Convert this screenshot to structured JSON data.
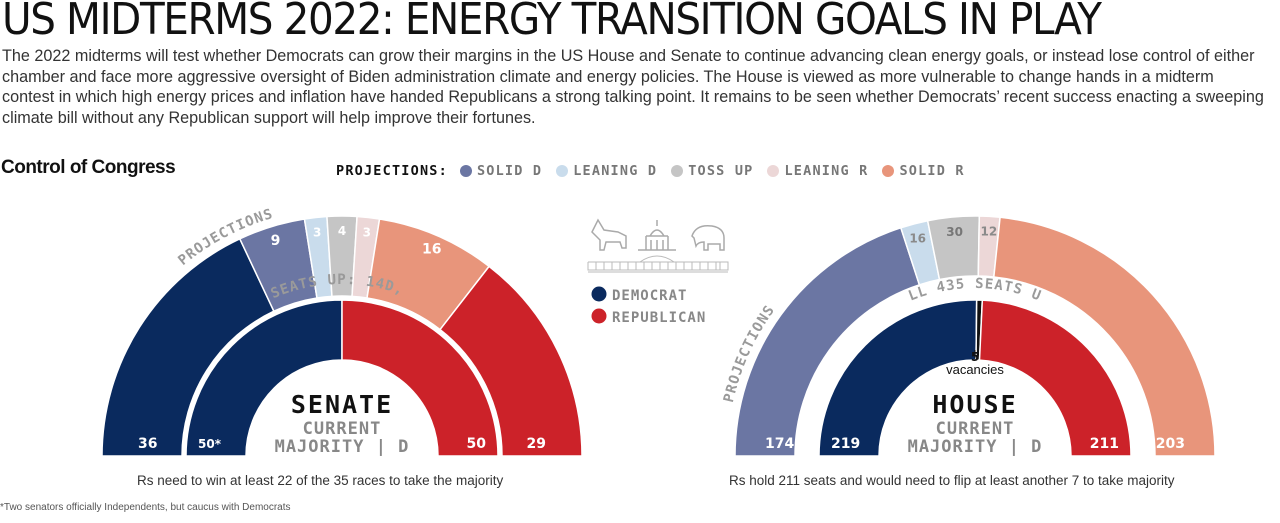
{
  "headline": "US MIDTERMS 2022: ENERGY TRANSITION GOALS IN PLAY",
  "deck": "The 2022 midterms will test whether Democrats can grow their margins in the US House and Senate to continue advancing clean energy goals, or instead lose control of either chamber and face more aggressive oversight of Biden administration climate and energy policies. The House is viewed as more vulnerable to change hands in a midterm contest in which high energy prices and inflation have handed Republicans a strong talking point. It remains to be seen whether Democrats’ recent success enacting a sweeping climate bill without any Republican support will help improve their fortunes.",
  "section_title": "Control of Congress",
  "legend": {
    "title": "PROJECTIONS:",
    "items": [
      {
        "label": "SOLID D",
        "color": "#6b76a3"
      },
      {
        "label": "LEANING D",
        "color": "#c9dcec"
      },
      {
        "label": "TOSS UP",
        "color": "#c5c5c5"
      },
      {
        "label": "LEANING R",
        "color": "#ecd7d7"
      },
      {
        "label": "SOLID R",
        "color": "#e8957b"
      }
    ]
  },
  "party_legend": [
    {
      "label": "DEMOCRAT",
      "color": "#0a2a5e"
    },
    {
      "label": "REPUBLICAN",
      "color": "#cc2229"
    }
  ],
  "icons": [
    "donkey-icon",
    "capitol-icon",
    "elephant-icon"
  ],
  "footnote": "*Two senators officially Independents, but caucus with Democrats",
  "chart_data": [
    {
      "type": "semicircle",
      "chamber": "SENATE",
      "subtitle_line1": "CURRENT",
      "subtitle_line2": "MAJORITY | D",
      "seats_up_label": "35 SEATS UP: 14D, 21R",
      "projections_label": "PROJECTIONS",
      "caption": "Rs need to win at least 22 of the 35 races to take the majority",
      "projections": [
        {
          "category": "Solid D",
          "value": 36,
          "label": "36",
          "color": "#0a2a5e"
        },
        {
          "category": "Solid D",
          "value": 9,
          "label": "9",
          "color": "#6b76a3"
        },
        {
          "category": "Leaning D",
          "value": 3,
          "label": "3",
          "color": "#c9dcec"
        },
        {
          "category": "Toss up",
          "value": 4,
          "label": "4",
          "color": "#c5c5c5"
        },
        {
          "category": "Leaning R",
          "value": 3,
          "label": "3",
          "color": "#ecd7d7"
        },
        {
          "category": "Solid R",
          "value": 16,
          "label": "16",
          "color": "#e8957b"
        },
        {
          "category": "Republican",
          "value": 29,
          "label": "29",
          "color": "#cc2229"
        }
      ],
      "current": [
        {
          "party": "Democrat",
          "value": 50,
          "label": "50*",
          "color": "#0a2a5e"
        },
        {
          "party": "Republican",
          "value": 50,
          "label": "50",
          "color": "#cc2229"
        }
      ]
    },
    {
      "type": "semicircle",
      "chamber": "HOUSE",
      "subtitle_line1": "CURRENT",
      "subtitle_line2": "MAJORITY | D",
      "seats_up_label": "ALL 435 SEATS UP",
      "projections_label": "PROJECTIONS",
      "caption": "Rs hold 211 seats and would need to flip at least another 7 to take majority",
      "projections": [
        {
          "category": "Solid D",
          "value": 174,
          "label": "174",
          "color": "#6b76a3"
        },
        {
          "category": "Leaning D",
          "value": 16,
          "label": "16",
          "color": "#c9dcec"
        },
        {
          "category": "Toss up",
          "value": 30,
          "label": "30",
          "color": "#c5c5c5"
        },
        {
          "category": "Leaning R",
          "value": 12,
          "label": "12",
          "color": "#ecd7d7"
        },
        {
          "category": "Solid R",
          "value": 203,
          "label": "203",
          "color": "#e8957b"
        }
      ],
      "current": [
        {
          "party": "Democrat",
          "value": 219,
          "label": "219",
          "color": "#0a2a5e"
        },
        {
          "party": "Vacancies",
          "value": 5,
          "label": "5",
          "color": "#111111"
        },
        {
          "party": "Republican",
          "value": 211,
          "label": "211",
          "color": "#cc2229"
        }
      ],
      "vacancies_label": "vacancies"
    }
  ]
}
